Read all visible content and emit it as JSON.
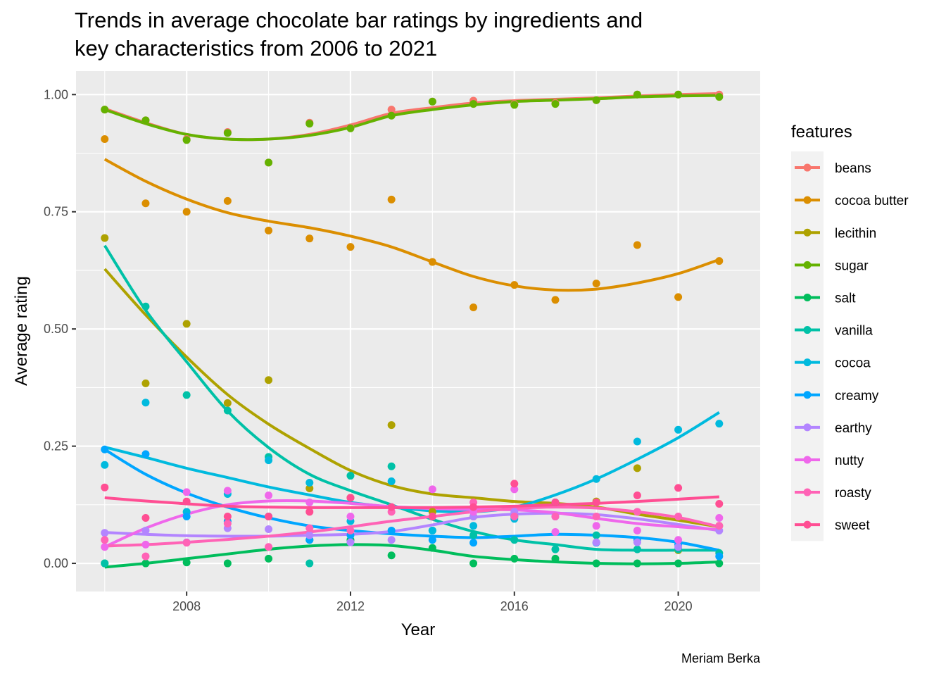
{
  "chart_data": {
    "type": "scatter",
    "title_lines": [
      "Trends in average chocolate bar ratings by ingredients and",
      "key characteristics from 2006 to 2021"
    ],
    "xlabel": "Year",
    "ylabel": "Average rating",
    "caption": "Meriam Berka",
    "xlim": [
      2005.3,
      2022.0
    ],
    "ylim": [
      -0.06,
      1.05
    ],
    "x_ticks": [
      2008,
      2012,
      2016,
      2020
    ],
    "y_ticks": [
      0,
      0.25,
      0.5,
      0.75,
      1
    ],
    "x_tick_labels": [
      "2008",
      "2012",
      "2016",
      "2020"
    ],
    "y_tick_labels": [
      "0.00",
      "0.25",
      "0.50",
      "0.75",
      "1.00"
    ],
    "grid": true,
    "smooth": true,
    "legend_title": "features",
    "legend_position": "right",
    "x": [
      2006,
      2007,
      2008,
      2009,
      2010,
      2011,
      2012,
      2013,
      2014,
      2015,
      2016,
      2017,
      2018,
      2019,
      2020,
      2021
    ],
    "series": [
      {
        "name": "beans",
        "color": "#F8766D",
        "values": [
          0.968,
          0.945,
          0.905,
          0.92,
          0.855,
          0.94,
          0.93,
          0.968,
          0.985,
          0.987,
          0.98,
          0.982,
          0.988,
          1.0,
          1.0,
          1.0
        ],
        "smooth": [
          0.97,
          0.94,
          0.915,
          0.905,
          0.905,
          0.915,
          0.935,
          0.96,
          0.972,
          0.982,
          0.987,
          0.99,
          0.993,
          0.997,
          1.0,
          1.002
        ]
      },
      {
        "name": "cocoa butter",
        "color": "#DB8E00",
        "values": [
          0.905,
          0.768,
          0.75,
          0.773,
          0.71,
          0.693,
          0.675,
          0.776,
          0.643,
          0.546,
          0.594,
          0.562,
          0.597,
          0.679,
          0.568,
          0.645
        ],
        "smooth": [
          0.862,
          0.815,
          0.777,
          0.748,
          0.73,
          0.716,
          0.698,
          0.675,
          0.643,
          0.612,
          0.592,
          0.583,
          0.585,
          0.598,
          0.618,
          0.648
        ]
      },
      {
        "name": "lecithin",
        "color": "#AEA200",
        "values": [
          0.694,
          0.384,
          0.511,
          0.342,
          0.391,
          0.16,
          0.14,
          0.295,
          0.11,
          0.1,
          0.1,
          0.13,
          0.132,
          0.203,
          0.028,
          0.08
        ],
        "smooth": [
          0.628,
          0.53,
          0.44,
          0.36,
          0.297,
          0.245,
          0.198,
          0.166,
          0.148,
          0.14,
          0.132,
          0.128,
          0.12,
          0.105,
          0.092,
          0.078
        ]
      },
      {
        "name": "sugar",
        "color": "#64B200",
        "values": [
          0.968,
          0.945,
          0.903,
          0.918,
          0.855,
          0.938,
          0.928,
          0.955,
          0.985,
          0.98,
          0.978,
          0.98,
          0.988,
          1.0,
          1.0,
          0.995
        ],
        "smooth": [
          0.968,
          0.938,
          0.915,
          0.905,
          0.905,
          0.913,
          0.93,
          0.955,
          0.968,
          0.978,
          0.985,
          0.988,
          0.991,
          0.995,
          0.997,
          0.998
        ]
      },
      {
        "name": "salt",
        "color": "#00BD5C",
        "values": [
          0.0,
          0.0,
          0.002,
          0.0,
          0.01,
          0.05,
          0.05,
          0.017,
          0.033,
          0.0,
          0.01,
          0.01,
          0.0,
          0.0,
          0.0,
          0.0
        ],
        "smooth": [
          -0.008,
          0.0,
          0.01,
          0.02,
          0.03,
          0.037,
          0.04,
          0.038,
          0.028,
          0.015,
          0.008,
          0.003,
          0.0,
          -0.001,
          0.0,
          0.003
        ]
      },
      {
        "name": "vanilla",
        "color": "#00C1A7",
        "values": [
          0.0,
          0.548,
          0.359,
          0.326,
          0.227,
          0.0,
          0.187,
          0.207,
          0.07,
          0.06,
          0.05,
          0.03,
          0.06,
          0.03,
          0.03,
          0.022
        ],
        "smooth": [
          0.678,
          0.54,
          0.43,
          0.325,
          0.247,
          0.19,
          0.155,
          0.125,
          0.094,
          0.068,
          0.05,
          0.04,
          0.03,
          0.028,
          0.028,
          0.028
        ]
      },
      {
        "name": "cocoa",
        "color": "#00BADE",
        "values": [
          0.21,
          0.343,
          0.11,
          0.148,
          0.22,
          0.172,
          0.09,
          0.175,
          0.07,
          0.08,
          0.095,
          0.13,
          0.18,
          0.26,
          0.285,
          0.298
        ],
        "smooth": [
          0.248,
          0.226,
          0.203,
          0.183,
          0.163,
          0.146,
          0.13,
          0.12,
          0.112,
          0.11,
          0.12,
          0.146,
          0.18,
          0.222,
          0.268,
          0.322
        ]
      },
      {
        "name": "creamy",
        "color": "#00A6FF",
        "values": [
          0.243,
          0.233,
          0.1,
          0.09,
          0.1,
          0.05,
          0.06,
          0.07,
          0.05,
          0.044,
          0.1,
          0.1,
          0.044,
          0.05,
          0.04,
          0.015
        ],
        "smooth": [
          0.243,
          0.19,
          0.15,
          0.12,
          0.097,
          0.08,
          0.07,
          0.063,
          0.058,
          0.055,
          0.058,
          0.062,
          0.06,
          0.055,
          0.045,
          0.028
        ]
      },
      {
        "name": "earthy",
        "color": "#B385FF",
        "values": [
          0.065,
          0.07,
          0.045,
          0.075,
          0.073,
          0.06,
          0.045,
          0.05,
          0.1,
          0.1,
          0.11,
          0.1,
          0.045,
          0.045,
          0.035,
          0.07
        ],
        "smooth": [
          0.066,
          0.062,
          0.059,
          0.058,
          0.058,
          0.06,
          0.062,
          0.068,
          0.082,
          0.098,
          0.105,
          0.107,
          0.104,
          0.095,
          0.083,
          0.07
        ]
      },
      {
        "name": "nutty",
        "color": "#EF67EB",
        "values": [
          0.035,
          0.04,
          0.152,
          0.155,
          0.145,
          0.13,
          0.1,
          0.12,
          0.158,
          0.11,
          0.158,
          0.067,
          0.08,
          0.07,
          0.05,
          0.097
        ],
        "smooth": [
          0.035,
          0.075,
          0.105,
          0.125,
          0.133,
          0.133,
          0.128,
          0.121,
          0.117,
          0.115,
          0.114,
          0.108,
          0.096,
          0.085,
          0.078,
          0.072
        ]
      },
      {
        "name": "roasty",
        "color": "#FF63B6",
        "values": [
          0.05,
          0.015,
          0.044,
          0.085,
          0.035,
          0.075,
          0.07,
          0.11,
          0.1,
          0.13,
          0.1,
          0.1,
          0.1,
          0.11,
          0.1,
          0.08
        ],
        "smooth": [
          0.037,
          0.04,
          0.045,
          0.051,
          0.058,
          0.067,
          0.078,
          0.09,
          0.1,
          0.11,
          0.117,
          0.12,
          0.118,
          0.11,
          0.098,
          0.078
        ]
      },
      {
        "name": "sweet",
        "color": "#FF4E93",
        "values": [
          0.162,
          0.097,
          0.132,
          0.1,
          0.1,
          0.11,
          0.14,
          0.12,
          0.1,
          0.12,
          0.17,
          0.13,
          0.13,
          0.145,
          0.161,
          0.127
        ],
        "smooth": [
          0.14,
          0.133,
          0.127,
          0.122,
          0.12,
          0.119,
          0.119,
          0.119,
          0.119,
          0.12,
          0.122,
          0.125,
          0.128,
          0.132,
          0.137,
          0.142
        ]
      }
    ]
  }
}
